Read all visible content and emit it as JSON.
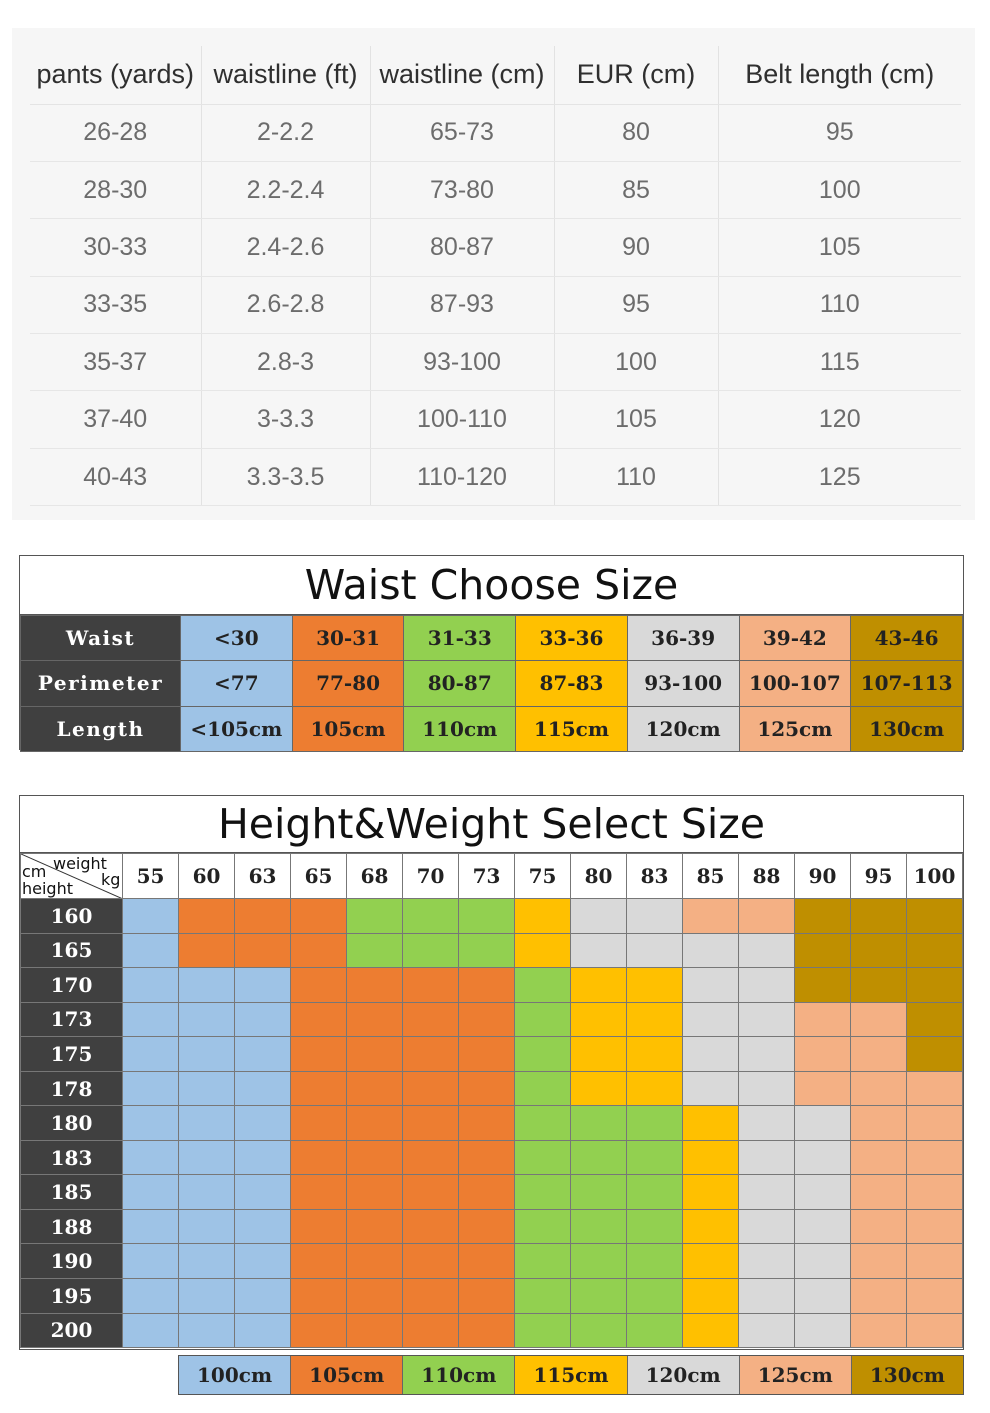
{
  "colors": {
    "blue": "#9ec3e6",
    "orange": "#ed7d31",
    "green": "#92d050",
    "yellow": "#ffc000",
    "gray": "#d9d9d9",
    "peach": "#f4b084",
    "gold": "#bf8f00",
    "header_dark": "#404040"
  },
  "belt_conversion": {
    "headers": [
      "pants (yards)",
      "waistline (ft)",
      "waistline (cm)",
      "EUR (cm)",
      "Belt length (cm)"
    ],
    "rows": [
      [
        "26-28",
        "2-2.2",
        "65-73",
        "80",
        "95"
      ],
      [
        "28-30",
        "2.2-2.4",
        "73-80",
        "85",
        "100"
      ],
      [
        "30-33",
        "2.4-2.6",
        "80-87",
        "90",
        "105"
      ],
      [
        "33-35",
        "2.6-2.8",
        "87-93",
        "95",
        "110"
      ],
      [
        "35-37",
        "2.8-3",
        "93-100",
        "100",
        "115"
      ],
      [
        "37-40",
        "3-3.3",
        "100-110",
        "105",
        "120"
      ],
      [
        "40-43",
        "3.3-3.5",
        "110-120",
        "110",
        "125"
      ]
    ]
  },
  "waist_size": {
    "title": "Waist Choose Size",
    "row_labels": [
      "Waist",
      "Perimeter",
      "Length"
    ],
    "columns": [
      {
        "waist": "<30",
        "perimeter": "<77",
        "length": "<105cm",
        "color": "blue"
      },
      {
        "waist": "30-31",
        "perimeter": "77-80",
        "length": "105cm",
        "color": "orange"
      },
      {
        "waist": "31-33",
        "perimeter": "80-87",
        "length": "110cm",
        "color": "green"
      },
      {
        "waist": "33-36",
        "perimeter": "87-83",
        "length": "115cm",
        "color": "yellow"
      },
      {
        "waist": "36-39",
        "perimeter": "93-100",
        "length": "120cm",
        "color": "gray"
      },
      {
        "waist": "39-42",
        "perimeter": "100-107",
        "length": "125cm",
        "color": "peach"
      },
      {
        "waist": "43-46",
        "perimeter": "107-113",
        "length": "130cm",
        "color": "gold"
      }
    ]
  },
  "height_weight": {
    "title": "Height&Weight Select Size",
    "corner": {
      "weight": "weight",
      "kg": "kg",
      "cm": "cm",
      "height": "height"
    },
    "weights": [
      "55",
      "60",
      "63",
      "65",
      "68",
      "70",
      "73",
      "75",
      "80",
      "83",
      "85",
      "88",
      "90",
      "95",
      "100"
    ],
    "rows": [
      {
        "height": "160",
        "cells": [
          "blue",
          "orange",
          "orange",
          "orange",
          "green",
          "green",
          "green",
          "yellow",
          "gray",
          "gray",
          "peach",
          "peach",
          "gold",
          "gold",
          "gold"
        ]
      },
      {
        "height": "165",
        "cells": [
          "blue",
          "orange",
          "orange",
          "orange",
          "green",
          "green",
          "green",
          "yellow",
          "gray",
          "gray",
          "gray",
          "gray",
          "gold",
          "gold",
          "gold"
        ]
      },
      {
        "height": "170",
        "cells": [
          "blue",
          "blue",
          "blue",
          "orange",
          "orange",
          "orange",
          "orange",
          "green",
          "yellow",
          "yellow",
          "gray",
          "gray",
          "gold",
          "gold",
          "gold"
        ]
      },
      {
        "height": "173",
        "cells": [
          "blue",
          "blue",
          "blue",
          "orange",
          "orange",
          "orange",
          "orange",
          "green",
          "yellow",
          "yellow",
          "gray",
          "gray",
          "peach",
          "peach",
          "gold"
        ]
      },
      {
        "height": "175",
        "cells": [
          "blue",
          "blue",
          "blue",
          "orange",
          "orange",
          "orange",
          "orange",
          "green",
          "yellow",
          "yellow",
          "gray",
          "gray",
          "peach",
          "peach",
          "gold"
        ]
      },
      {
        "height": "178",
        "cells": [
          "blue",
          "blue",
          "blue",
          "orange",
          "orange",
          "orange",
          "orange",
          "green",
          "yellow",
          "yellow",
          "gray",
          "gray",
          "peach",
          "peach",
          "peach"
        ]
      },
      {
        "height": "180",
        "cells": [
          "blue",
          "blue",
          "blue",
          "orange",
          "orange",
          "orange",
          "orange",
          "green",
          "green",
          "green",
          "yellow",
          "gray",
          "gray",
          "peach",
          "peach"
        ]
      },
      {
        "height": "183",
        "cells": [
          "blue",
          "blue",
          "blue",
          "orange",
          "orange",
          "orange",
          "orange",
          "green",
          "green",
          "green",
          "yellow",
          "gray",
          "gray",
          "peach",
          "peach"
        ]
      },
      {
        "height": "185",
        "cells": [
          "blue",
          "blue",
          "blue",
          "orange",
          "orange",
          "orange",
          "orange",
          "green",
          "green",
          "green",
          "yellow",
          "gray",
          "gray",
          "peach",
          "peach"
        ]
      },
      {
        "height": "188",
        "cells": [
          "blue",
          "blue",
          "blue",
          "orange",
          "orange",
          "orange",
          "orange",
          "green",
          "green",
          "green",
          "yellow",
          "gray",
          "gray",
          "peach",
          "peach"
        ]
      },
      {
        "height": "190",
        "cells": [
          "blue",
          "blue",
          "blue",
          "orange",
          "orange",
          "orange",
          "orange",
          "green",
          "green",
          "green",
          "yellow",
          "gray",
          "gray",
          "peach",
          "peach"
        ]
      },
      {
        "height": "195",
        "cells": [
          "blue",
          "blue",
          "blue",
          "orange",
          "orange",
          "orange",
          "orange",
          "green",
          "green",
          "green",
          "yellow",
          "gray",
          "gray",
          "peach",
          "peach"
        ]
      },
      {
        "height": "200",
        "cells": [
          "blue",
          "blue",
          "blue",
          "orange",
          "orange",
          "orange",
          "orange",
          "green",
          "green",
          "green",
          "yellow",
          "gray",
          "gray",
          "peach",
          "peach"
        ]
      }
    ],
    "legend": [
      {
        "label": "100cm",
        "color": "blue"
      },
      {
        "label": "105cm",
        "color": "orange"
      },
      {
        "label": "110cm",
        "color": "green"
      },
      {
        "label": "115cm",
        "color": "yellow"
      },
      {
        "label": "120cm",
        "color": "gray"
      },
      {
        "label": "125cm",
        "color": "peach"
      },
      {
        "label": "130cm",
        "color": "gold"
      }
    ]
  }
}
